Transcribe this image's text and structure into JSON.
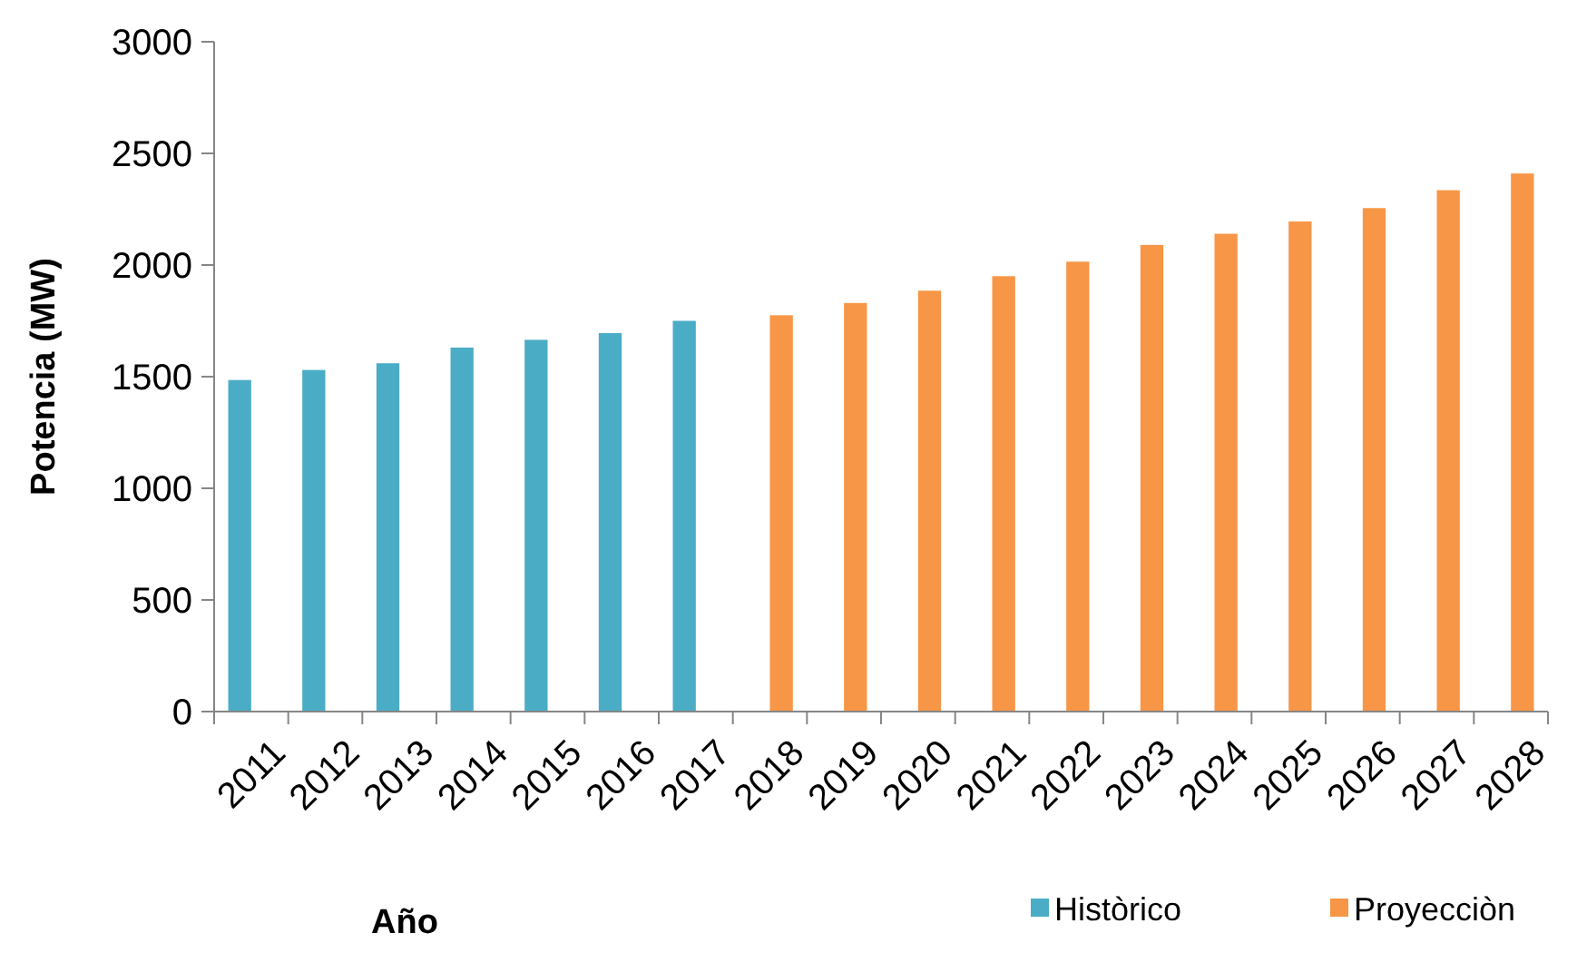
{
  "chart_data": {
    "type": "bar",
    "xlabel": "Año",
    "ylabel": "Potencia (MW)",
    "categories": [
      "2011",
      "2012",
      "2013",
      "2014",
      "2015",
      "2016",
      "2017",
      "2018",
      "2019",
      "2020",
      "2021",
      "2022",
      "2023",
      "2024",
      "2025",
      "2026",
      "2027",
      "2028"
    ],
    "series": [
      {
        "name": "Històrico",
        "color": "#4bacc6",
        "values": [
          1485,
          1530,
          1560,
          1630,
          1665,
          1695,
          1750,
          null,
          null,
          null,
          null,
          null,
          null,
          null,
          null,
          null,
          null,
          null
        ]
      },
      {
        "name": "Proyecciòn",
        "color": "#f79646",
        "values": [
          null,
          null,
          null,
          null,
          null,
          null,
          null,
          1775,
          1830,
          1885,
          1950,
          2015,
          2090,
          2140,
          2195,
          2255,
          2335,
          2410
        ]
      }
    ],
    "ylim": [
      0,
      3000
    ],
    "yticks": [
      0,
      500,
      1000,
      1500,
      2000,
      2500,
      3000
    ],
    "grid": false,
    "legend": "bottom"
  }
}
